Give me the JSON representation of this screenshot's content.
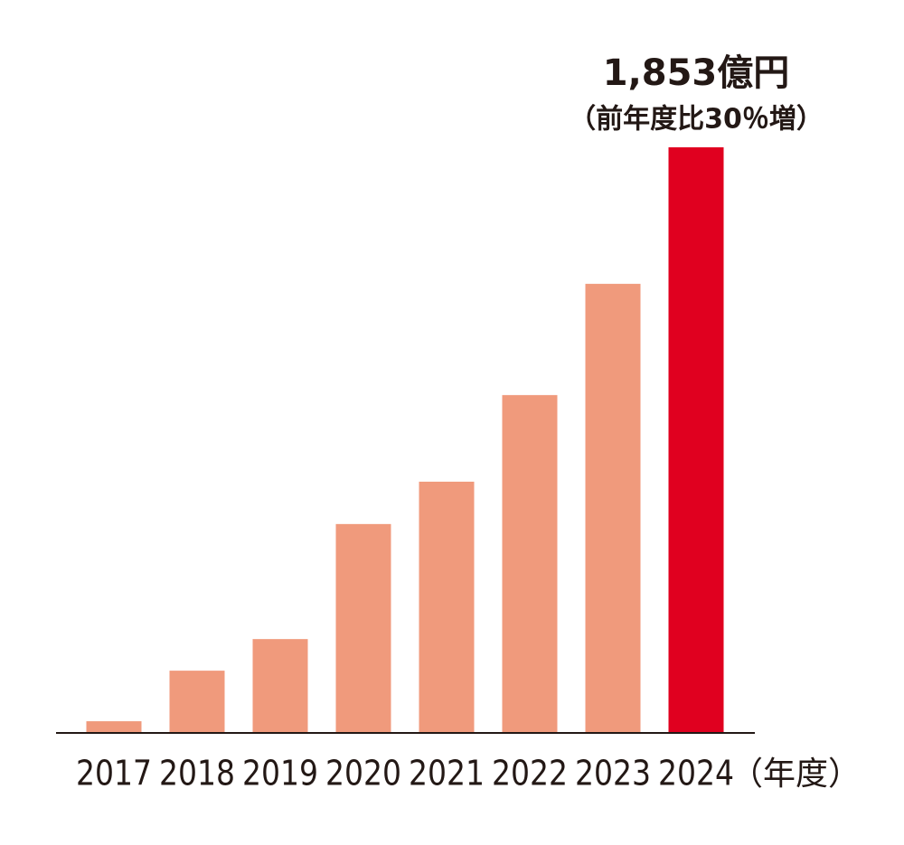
{
  "chart_data": {
    "type": "bar",
    "categories": [
      "2017",
      "2018",
      "2019",
      "2020",
      "2021",
      "2022",
      "2023",
      "2024"
    ],
    "values": [
      37,
      197,
      297,
      661,
      795,
      1069,
      1421,
      1853
    ],
    "value_labels": [
      null,
      null,
      null,
      null,
      null,
      null,
      null,
      "1,853億円"
    ],
    "colors": [
      "#f09a7c",
      "#f09a7c",
      "#f09a7c",
      "#f09a7c",
      "#f09a7c",
      "#f09a7c",
      "#f09a7c",
      "#e0001f"
    ],
    "annotation": "（前年度比30％増）",
    "x_label": "（年度）"
  }
}
